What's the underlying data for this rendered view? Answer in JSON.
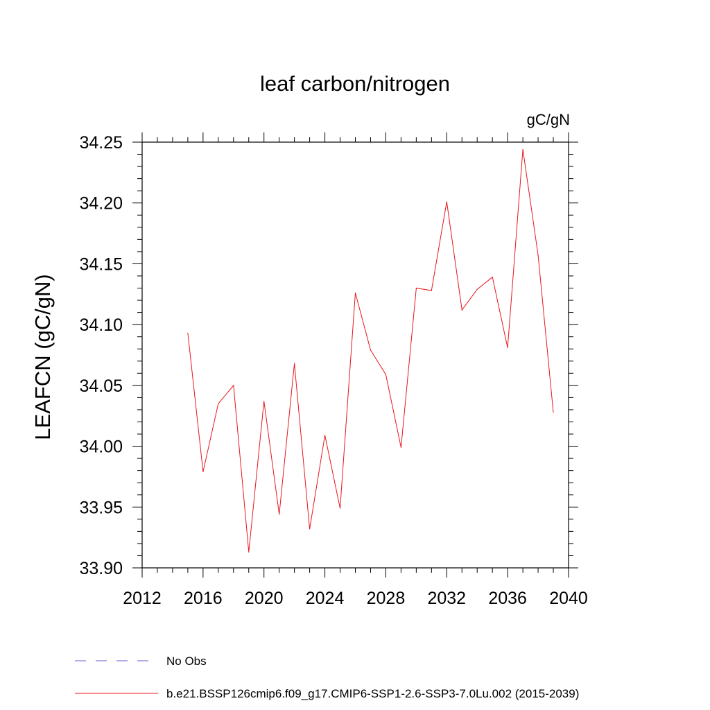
{
  "chart_data": {
    "type": "line",
    "title": "leaf carbon/nitrogen",
    "units_label": "gC/gN",
    "ylabel": "LEAFCN  (gC/gN)",
    "xlabel": "",
    "xlim": [
      2012,
      2040
    ],
    "ylim": [
      33.9,
      34.25
    ],
    "x_ticks": [
      "2012",
      "2016",
      "2020",
      "2024",
      "2028",
      "2032",
      "2036",
      "2040"
    ],
    "y_ticks": [
      "33.90",
      "33.95",
      "34.00",
      "34.05",
      "34.10",
      "34.15",
      "34.20",
      "34.25"
    ],
    "series": [
      {
        "name": "b.e21.BSSP126cmip6.f09_g17.CMIP6-SSP1-2.6-SSP3-7.0Lu.002 (2015-2039)",
        "color": "#e8141c",
        "style": "solid",
        "x": [
          2015,
          2016,
          2017,
          2018,
          2019,
          2020,
          2021,
          2022,
          2023,
          2024,
          2025,
          2026,
          2027,
          2028,
          2029,
          2030,
          2031,
          2032,
          2033,
          2034,
          2035,
          2036,
          2037,
          2038,
          2039
        ],
        "values": [
          34.093,
          33.979,
          34.035,
          34.05,
          33.913,
          34.037,
          33.944,
          34.068,
          33.932,
          34.009,
          33.949,
          34.126,
          34.079,
          34.059,
          33.999,
          34.13,
          34.128,
          34.201,
          34.112,
          34.129,
          34.139,
          34.081,
          34.244,
          34.157,
          34.028
        ]
      }
    ],
    "legend": [
      {
        "label": "No Obs",
        "color": "#6a5acd",
        "style": "dashed"
      },
      {
        "label": "b.e21.BSSP126cmip6.f09_g17.CMIP6-SSP1-2.6-SSP3-7.0Lu.002 (2015-2039)",
        "color": "#e8141c",
        "style": "solid"
      }
    ],
    "legend_position": "bottom-left",
    "grid": false
  }
}
